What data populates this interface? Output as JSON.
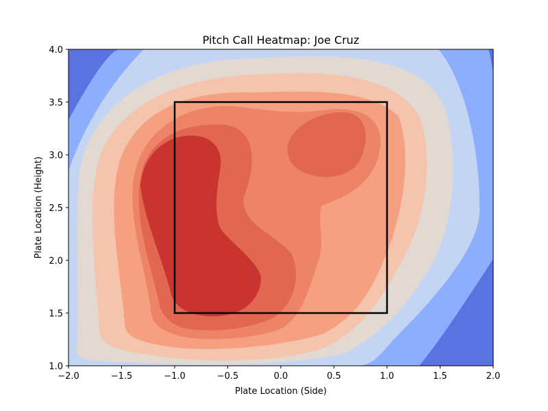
{
  "chart_data": {
    "type": "heatmap",
    "subtype": "filled-contour",
    "title": "Pitch Call Heatmap: Joe Cruz",
    "xlabel": "Plate Location (Side)",
    "ylabel": "Plate Location (Height)",
    "xlim": [
      -2.0,
      2.0
    ],
    "ylim": [
      1.0,
      4.0
    ],
    "x_ticks": [
      "−2.0",
      "−1.5",
      "−1.0",
      "−0.5",
      "0.0",
      "0.5",
      "1.0",
      "1.5",
      "2.0"
    ],
    "y_ticks": [
      "1.0",
      "1.5",
      "2.0",
      "2.5",
      "3.0",
      "3.5",
      "4.0"
    ],
    "colormap": "coolwarm",
    "grid": false,
    "legend": "none",
    "level_colors": [
      "#5a73e0",
      "#8caefc",
      "#c4d4f3",
      "#e2d9d3",
      "#f5c4ac",
      "#f5a081",
      "#ed8467",
      "#e16751",
      "#c93430"
    ],
    "density_peaks": [
      {
        "x": -0.7,
        "y": 2.4,
        "level": "highest"
      },
      {
        "x": 0.5,
        "y": 3.05,
        "level": "high"
      }
    ],
    "strike_zone": {
      "x": [
        -1.0,
        1.0
      ],
      "y": [
        1.5,
        3.5
      ],
      "color": "#000000"
    }
  }
}
